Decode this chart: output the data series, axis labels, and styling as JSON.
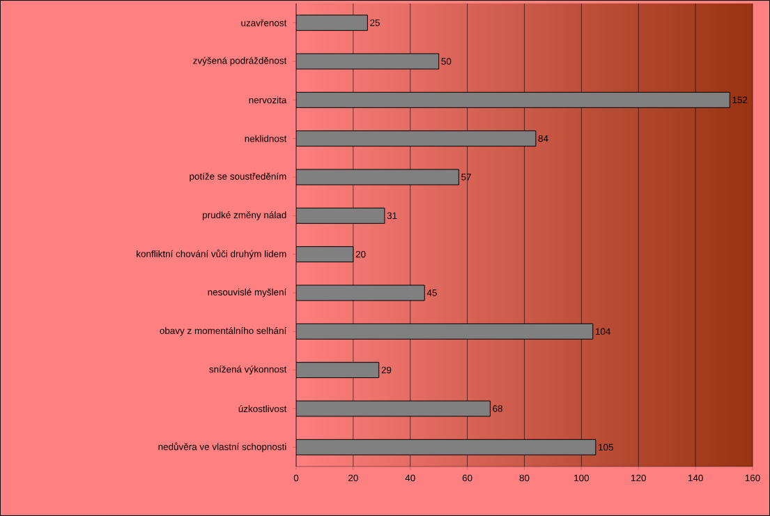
{
  "chart_data": {
    "type": "bar",
    "orientation": "horizontal",
    "categories": [
      "uzavřenost",
      "zvýšená podrážděnost",
      "nervozita",
      "neklidnost",
      "potíže se soustředěním",
      "prudké změny nálad",
      "konfliktní chování vůči druhým lidem",
      "nesouvislé myšlení",
      "obavy z momentálního selhání",
      "snížená výkonnost",
      "úzkostlivost",
      "nedůvěra ve vlastní schopnosti"
    ],
    "values": [
      25,
      50,
      152,
      84,
      57,
      31,
      20,
      45,
      104,
      29,
      68,
      105
    ],
    "color": "#808080",
    "xlim": [
      0,
      160
    ],
    "xticks": [
      0,
      20,
      40,
      60,
      80,
      100,
      120,
      140,
      160
    ],
    "grid": "x",
    "data_labels": true
  }
}
